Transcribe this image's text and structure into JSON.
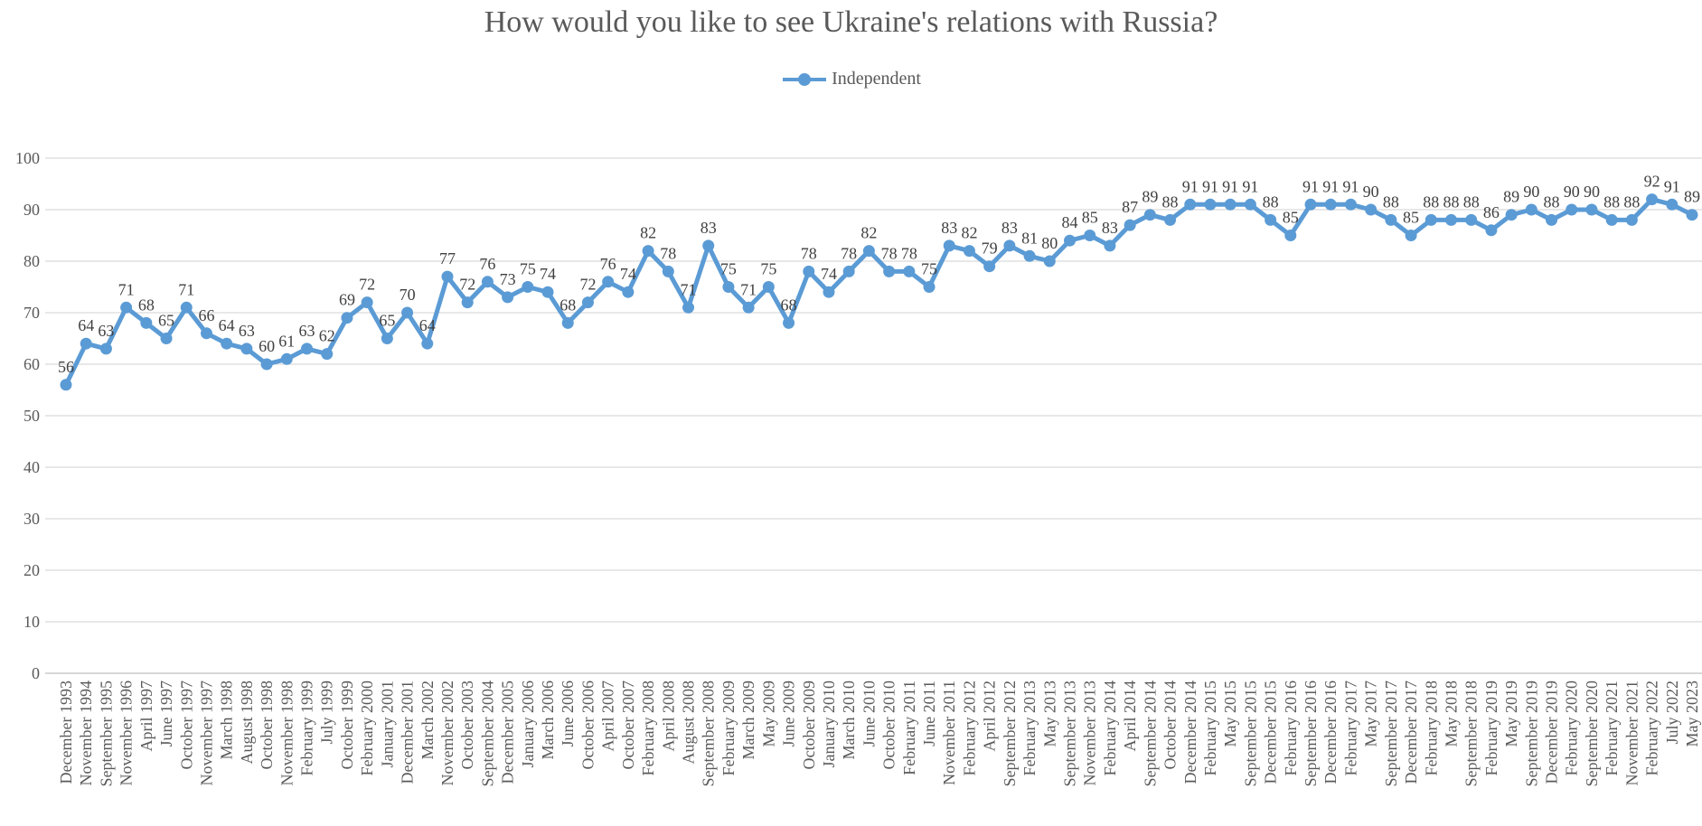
{
  "chart_data": {
    "type": "line",
    "title": "How would you like to see Ukraine's relations with Russia?",
    "xlabel": "",
    "ylabel": "",
    "ylim": [
      0,
      100
    ],
    "yticks": [
      0,
      10,
      20,
      30,
      40,
      50,
      60,
      70,
      80,
      90,
      100
    ],
    "grid": true,
    "legend_position": "top",
    "categories": [
      "December 1993",
      "November 1994",
      "September 1995",
      "November 1996",
      "April 1997",
      "June 1997",
      "October 1997",
      "November 1997",
      "March 1998",
      "August 1998",
      "October 1998",
      "November 1998",
      "February 1999",
      "July 1999",
      "October 1999",
      "February 2000",
      "January 2001",
      "December 2001",
      "March 2002",
      "November 2002",
      "October 2003",
      "September 2004",
      "December 2005",
      "January 2006",
      "March 2006",
      "June 2006",
      "October 2006",
      "April 2007",
      "October 2007",
      "February 2008",
      "April 2008",
      "August 2008",
      "September 2008",
      "February 2009",
      "March 2009",
      "May 2009",
      "June 2009",
      "October 2009",
      "January 2010",
      "March 2010",
      "June 2010",
      "October 2010",
      "February 2011",
      "June 2011",
      "November 2011",
      "February 2012",
      "April 2012",
      "September 2012",
      "February 2013",
      "May 2013",
      "September 2013",
      "November 2013",
      "February 2014",
      "April 2014",
      "September 2014",
      "October 2014",
      "December 2014",
      "February 2015",
      "May 2015",
      "September 2015",
      "December 2015",
      "February 2016",
      "September 2016",
      "December 2016",
      "February 2017",
      "May 2017",
      "September 2017",
      "December 2017",
      "February 2018",
      "May 2018",
      "September 2018",
      "February 2019",
      "May 2019",
      "September 2019",
      "December 2019",
      "February 2020",
      "September 2020",
      "February 2021",
      "November 2021",
      "February 2022",
      "July 2022",
      "May 2023"
    ],
    "series": [
      {
        "name": "Independent",
        "color": "#5B9BD5",
        "values": [
          56,
          64,
          63,
          71,
          68,
          65,
          71,
          66,
          64,
          63,
          60,
          61,
          63,
          62,
          69,
          72,
          65,
          70,
          64,
          77,
          72,
          76,
          73,
          75,
          74,
          68,
          72,
          76,
          74,
          82,
          78,
          71,
          83,
          75,
          71,
          75,
          68,
          78,
          74,
          78,
          82,
          78,
          78,
          75,
          83,
          82,
          79,
          83,
          81,
          80,
          84,
          85,
          83,
          87,
          89,
          88,
          91,
          91,
          91,
          91,
          88,
          85,
          91,
          91,
          91,
          90,
          88,
          85,
          88,
          88,
          88,
          86,
          89,
          90,
          88,
          90,
          90,
          88,
          88,
          92,
          91,
          89
        ]
      }
    ]
  }
}
